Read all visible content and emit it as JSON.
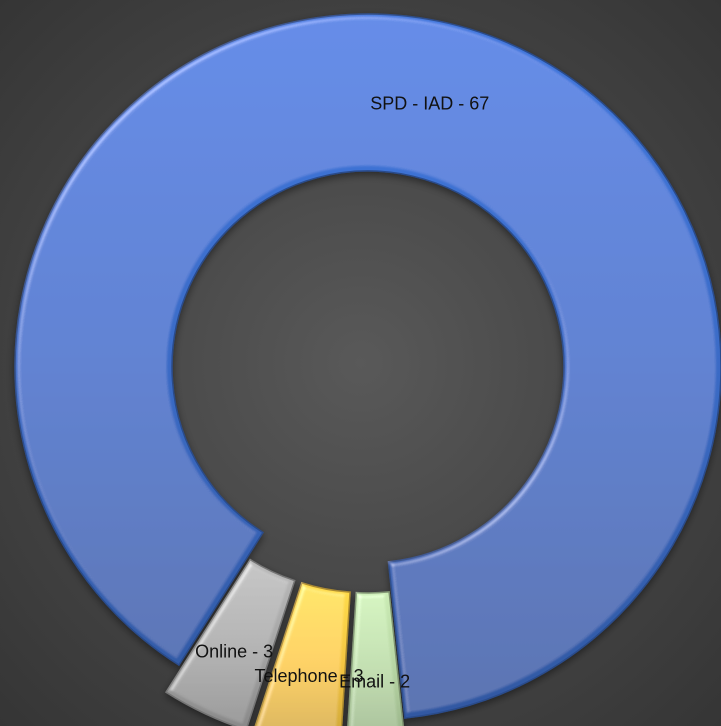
{
  "chart_data": {
    "type": "pie",
    "variant": "doughnut",
    "title": "",
    "series": [
      {
        "slices": [
          {
            "label": "SPD - IAD",
            "value": 67,
            "color": "#3a6bc6",
            "data_label": "SPD - IAD - 67"
          },
          {
            "label": "Email",
            "value": 2,
            "color": "#b5d3a2",
            "data_label": "Email - 2"
          },
          {
            "label": "Telephone",
            "value": 3,
            "color": "#f4c542",
            "data_label": "Telephone - 3"
          },
          {
            "label": "Online",
            "value": 3,
            "color": "#a6a6a6",
            "data_label": "Online - 3"
          }
        ]
      }
    ],
    "legend": "none",
    "data_labels": true,
    "small_slices_exploded": true
  }
}
